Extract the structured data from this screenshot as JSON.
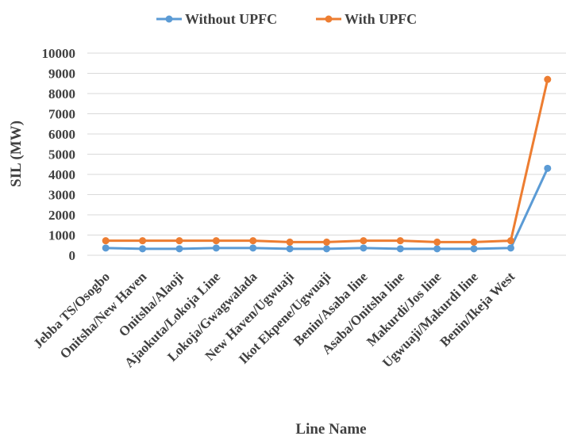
{
  "chart_data": {
    "type": "line",
    "title": "",
    "xlabel": "Line Name",
    "ylabel": "SIL (MW)",
    "ylim": [
      0,
      10000
    ],
    "yticks": [
      0,
      1000,
      2000,
      3000,
      4000,
      5000,
      6000,
      7000,
      8000,
      9000,
      10000
    ],
    "categories": [
      "Jebba TS/Osogbo",
      "Onitsha/New Haven",
      "Onitsha/Alaoji",
      "Ajaokuta/Lokoja Line",
      "Lokoja/Gwagwalada",
      "New Haven/Ugwuaji",
      "Ikot Ekpene/Ugwuaji",
      "Benin/Asaba line",
      "Asaba/Onitsha line",
      "Makurdi/Jos line",
      "Ugwuaji/Makurdi line",
      "Benin/Ikeja West",
      ""
    ],
    "series": [
      {
        "name": "Without UPFC",
        "color": "#5b9bd5",
        "values": [
          360,
          320,
          320,
          360,
          360,
          320,
          320,
          360,
          320,
          320,
          320,
          360,
          4300
        ]
      },
      {
        "name": "With UPFC",
        "color": "#ed7d31",
        "values": [
          720,
          720,
          720,
          720,
          720,
          650,
          650,
          720,
          720,
          650,
          650,
          720,
          8700
        ]
      }
    ],
    "grid": true,
    "legend_position": "top"
  }
}
